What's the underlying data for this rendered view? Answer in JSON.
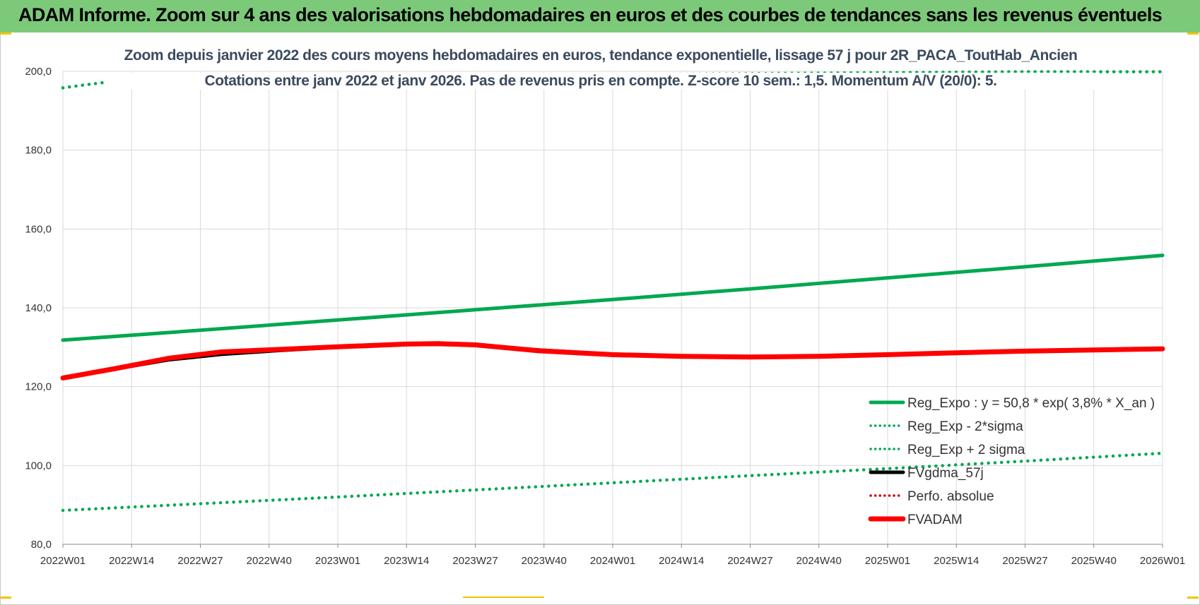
{
  "banner": {
    "title": "ADAM Informe. Zoom sur 4 ans des valorisations hebdomadaires en euros et des courbes de tendances sans les revenus éventuels"
  },
  "colors": {
    "banner_bg": "#7dc97a",
    "green": "#00a84f",
    "red": "#ff0000",
    "black": "#000000",
    "grid": "#d9d9d9"
  },
  "chart_data": {
    "type": "line",
    "title": "Zoom depuis janvier 2022 des cours moyens hebdomadaires en euros, tendance exponentielle, lissage 57 j pour 2R_PACA_ToutHab_Ancien",
    "subtitle": "Cotations entre janv 2022 et janv 2026. Pas de revenus pris en compte. Z-score 10 sem.: 1,5. Momentum A/V (20/0): 5.",
    "x_tick_labels": [
      "2022W01",
      "2022W14",
      "2022W27",
      "2022W40",
      "2023W01",
      "2023W14",
      "2023W27",
      "2023W40",
      "2024W01",
      "2024W14",
      "2024W27",
      "2024W40",
      "2025W01",
      "2025W14",
      "2025W27",
      "2025W40",
      "2026W01"
    ],
    "y_tick_labels": [
      "80,0",
      "100,0",
      "120,0",
      "140,0",
      "160,0",
      "180,0",
      "200,0"
    ],
    "ylim": [
      80,
      200
    ],
    "x_range_weeks": [
      0,
      208
    ],
    "grid": true,
    "legend_position": "bottom-right",
    "series": [
      {
        "name": "Reg_Expo : y = 50,8 * exp( 3,8% *  X_an )",
        "style": "solid",
        "color": "#00a84f",
        "x_week": [
          0,
          26,
          52,
          78,
          104,
          130,
          156,
          182,
          208
        ],
        "y": [
          131.8,
          134.3,
          136.9,
          139.5,
          142.1,
          144.8,
          147.6,
          150.4,
          153.3
        ]
      },
      {
        "name": "Reg_Exp - 2*sigma",
        "style": "dotted",
        "color": "#00a84f",
        "x_week": [
          0,
          26,
          52,
          78,
          104,
          130,
          156,
          182,
          208
        ],
        "y": [
          88.6,
          90.3,
          92.0,
          93.8,
          95.6,
          97.4,
          99.2,
          101.1,
          103.1
        ]
      },
      {
        "name": "Reg_Exp + 2 sigma",
        "style": "dotted",
        "color": "#00a84f",
        "x_week": [
          0,
          5,
          10,
          16,
          181,
          208
        ],
        "y": [
          195.8,
          196.7,
          197.5,
          198.3,
          199.9,
          199.9
        ],
        "note": "clipped at 200"
      },
      {
        "name": "FVgdma_57j",
        "style": "solid",
        "color": "#000000",
        "x_week": [
          0,
          10,
          20,
          30,
          40,
          52,
          65,
          78,
          90,
          104,
          117,
          130,
          143,
          156,
          169,
          182,
          195,
          208
        ],
        "y": [
          122.2,
          124.5,
          126.8,
          128.2,
          129.1,
          130.0,
          130.8,
          130.6,
          129.3,
          128.2,
          127.6,
          127.5,
          127.6,
          128.0,
          128.5,
          128.9,
          129.2,
          129.6
        ]
      },
      {
        "name": "Perfo. absolue",
        "style": "dotted",
        "color": "#cc0000",
        "x_week": [],
        "y": []
      },
      {
        "name": "FVADAM",
        "style": "solid-thick",
        "color": "#ff0000",
        "x_week": [
          0,
          10,
          20,
          30,
          40,
          52,
          65,
          71,
          78,
          90,
          104,
          117,
          130,
          143,
          156,
          169,
          182,
          195,
          208
        ],
        "y": [
          122.2,
          124.6,
          127.2,
          128.8,
          129.4,
          130.1,
          130.8,
          130.9,
          130.6,
          129.1,
          128.1,
          127.7,
          127.5,
          127.7,
          128.1,
          128.6,
          129.0,
          129.3,
          129.6
        ]
      }
    ]
  }
}
